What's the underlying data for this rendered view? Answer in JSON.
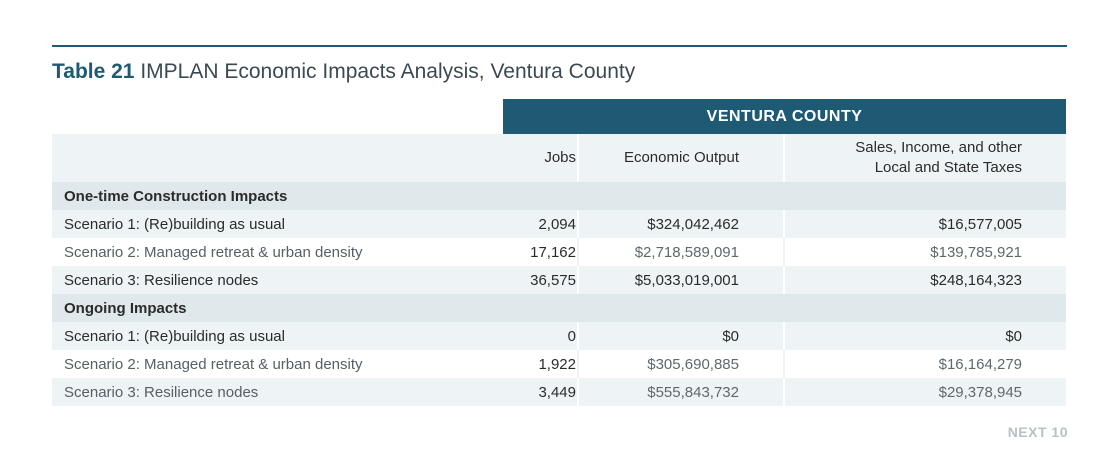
{
  "title": {
    "label": "Table 21",
    "text": "IMPLAN Economic Impacts Analysis, Ventura County"
  },
  "county_header": "VENTURA COUNTY",
  "columns": {
    "jobs": "Jobs",
    "output": "Economic Output",
    "taxes_line1": "Sales, Income, and other",
    "taxes_line2": "Local and State Taxes"
  },
  "sections": [
    {
      "title": "One-time Construction Impacts",
      "rows": [
        {
          "name": "Scenario 1: (Re)building as usual",
          "jobs": "2,094",
          "output": "$324,042,462",
          "taxes": "$16,577,005"
        },
        {
          "name": "Scenario 2: Managed retreat & urban density",
          "jobs": "17,162",
          "output": "$2,718,589,091",
          "taxes": "$139,785,921"
        },
        {
          "name": "Scenario 3: Resilience nodes",
          "jobs": "36,575",
          "output": "$5,033,019,001",
          "taxes": "$248,164,323"
        }
      ]
    },
    {
      "title": "Ongoing Impacts",
      "rows": [
        {
          "name": "Scenario 1: (Re)building as usual",
          "jobs": "0",
          "output": "$0",
          "taxes": "$0"
        },
        {
          "name": "Scenario 2: Managed retreat & urban density",
          "jobs": "1,922",
          "output": "$305,690,885",
          "taxes": "$16,164,279"
        },
        {
          "name": "Scenario 3: Resilience nodes",
          "jobs": "3,449",
          "output": "$555,843,732",
          "taxes": "$29,378,945"
        }
      ]
    }
  ],
  "footer": "NEXT 10",
  "colors": {
    "header_bg": "#1e5a74",
    "row_tint": "#eef4f6",
    "section_tint": "#dfe8eb"
  }
}
